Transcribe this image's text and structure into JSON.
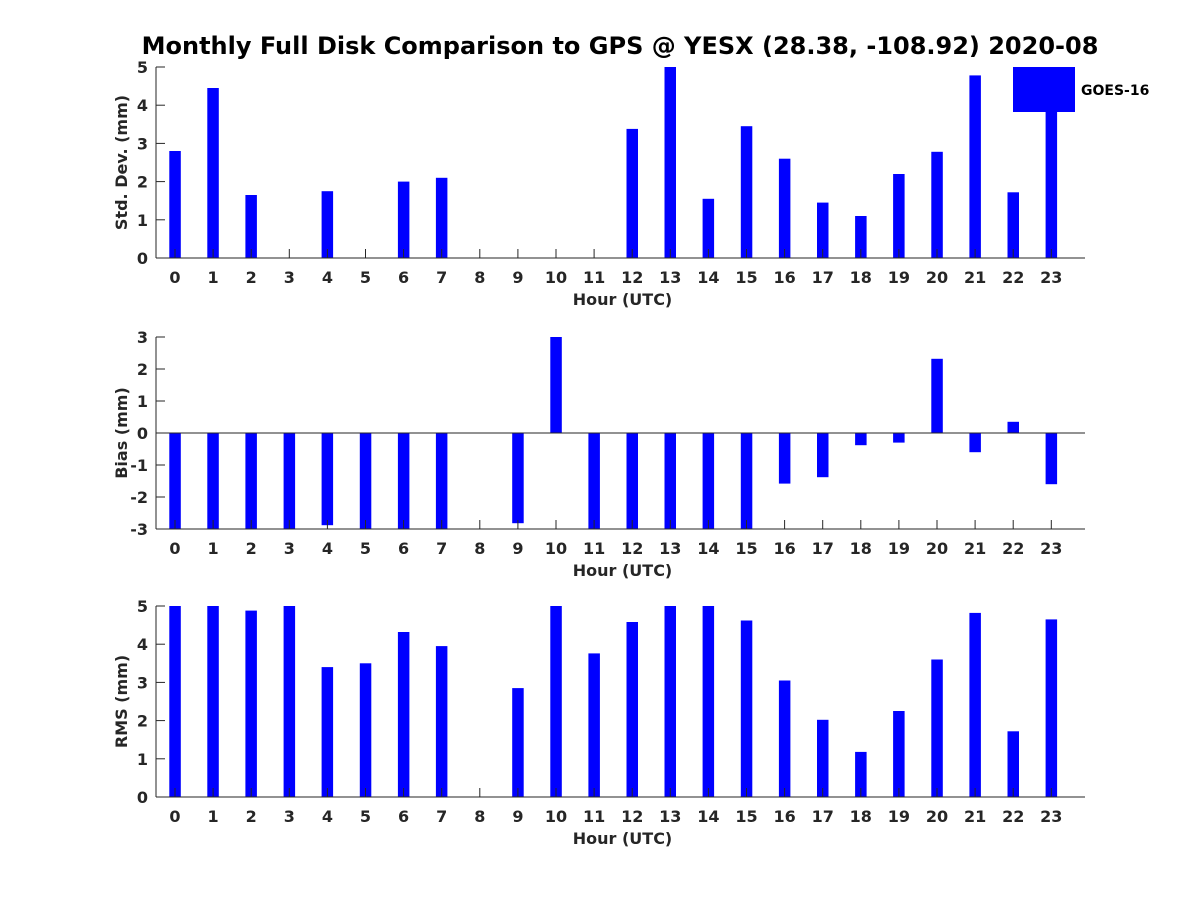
{
  "title": "Monthly Full Disk Comparison to GPS @ YESX (28.38, -108.92) 2020-08",
  "legend": {
    "label": "GOES-16",
    "color": "#0000ff"
  },
  "colors": {
    "bar": "#0000ff",
    "axis": "#262626",
    "background": "#ffffff"
  },
  "chart_data": [
    {
      "type": "bar",
      "title": "Monthly Full Disk Comparison to GPS @ YESX (28.38, -108.92) 2020-08",
      "xlabel": "Hour (UTC)",
      "ylabel": "Std. Dev. (mm)",
      "categories": [
        "0",
        "1",
        "2",
        "3",
        "4",
        "5",
        "6",
        "7",
        "8",
        "9",
        "10",
        "11",
        "12",
        "13",
        "14",
        "15",
        "16",
        "17",
        "18",
        "19",
        "20",
        "21",
        "22",
        "23"
      ],
      "series": [
        {
          "name": "GOES-16",
          "values": [
            2.8,
            4.45,
            1.65,
            null,
            1.75,
            null,
            2.0,
            2.1,
            null,
            null,
            null,
            null,
            3.38,
            5.0,
            1.55,
            3.45,
            2.6,
            1.45,
            1.1,
            2.2,
            2.78,
            4.78,
            1.72,
            4.0
          ]
        }
      ],
      "ylim": [
        0,
        5
      ],
      "yticks": [
        "0",
        "1",
        "2",
        "3",
        "4",
        "5"
      ],
      "grid": false,
      "legend": "top-right"
    },
    {
      "type": "bar",
      "xlabel": "Hour (UTC)",
      "ylabel": "Bias (mm)",
      "categories": [
        "0",
        "1",
        "2",
        "3",
        "4",
        "5",
        "6",
        "7",
        "8",
        "9",
        "10",
        "11",
        "12",
        "13",
        "14",
        "15",
        "16",
        "17",
        "18",
        "19",
        "20",
        "21",
        "22",
        "23"
      ],
      "series": [
        {
          "name": "GOES-16",
          "values": [
            -3.0,
            -3.0,
            -3.0,
            -3.0,
            -2.88,
            -3.0,
            -3.0,
            -3.0,
            null,
            -2.82,
            3.0,
            -3.0,
            -3.0,
            -3.0,
            -3.0,
            -3.0,
            -1.58,
            -1.38,
            -0.38,
            -0.3,
            2.32,
            -0.6,
            0.35,
            -1.6
          ]
        }
      ],
      "ylim": [
        -3,
        3
      ],
      "yticks": [
        "-3",
        "-2",
        "-1",
        "0",
        "1",
        "2",
        "3"
      ],
      "grid": false
    },
    {
      "type": "bar",
      "xlabel": "Hour (UTC)",
      "ylabel": "RMS (mm)",
      "categories": [
        "0",
        "1",
        "2",
        "3",
        "4",
        "5",
        "6",
        "7",
        "8",
        "9",
        "10",
        "11",
        "12",
        "13",
        "14",
        "15",
        "16",
        "17",
        "18",
        "19",
        "20",
        "21",
        "22",
        "23"
      ],
      "series": [
        {
          "name": "GOES-16",
          "values": [
            5.0,
            5.0,
            4.88,
            5.0,
            3.4,
            3.5,
            4.32,
            3.95,
            null,
            2.85,
            5.0,
            3.76,
            4.58,
            5.0,
            5.0,
            4.62,
            3.05,
            2.02,
            1.18,
            2.25,
            3.6,
            4.82,
            1.72,
            4.65
          ]
        }
      ],
      "ylim": [
        0,
        5
      ],
      "yticks": [
        "0",
        "1",
        "2",
        "3",
        "4",
        "5"
      ],
      "grid": false
    }
  ]
}
